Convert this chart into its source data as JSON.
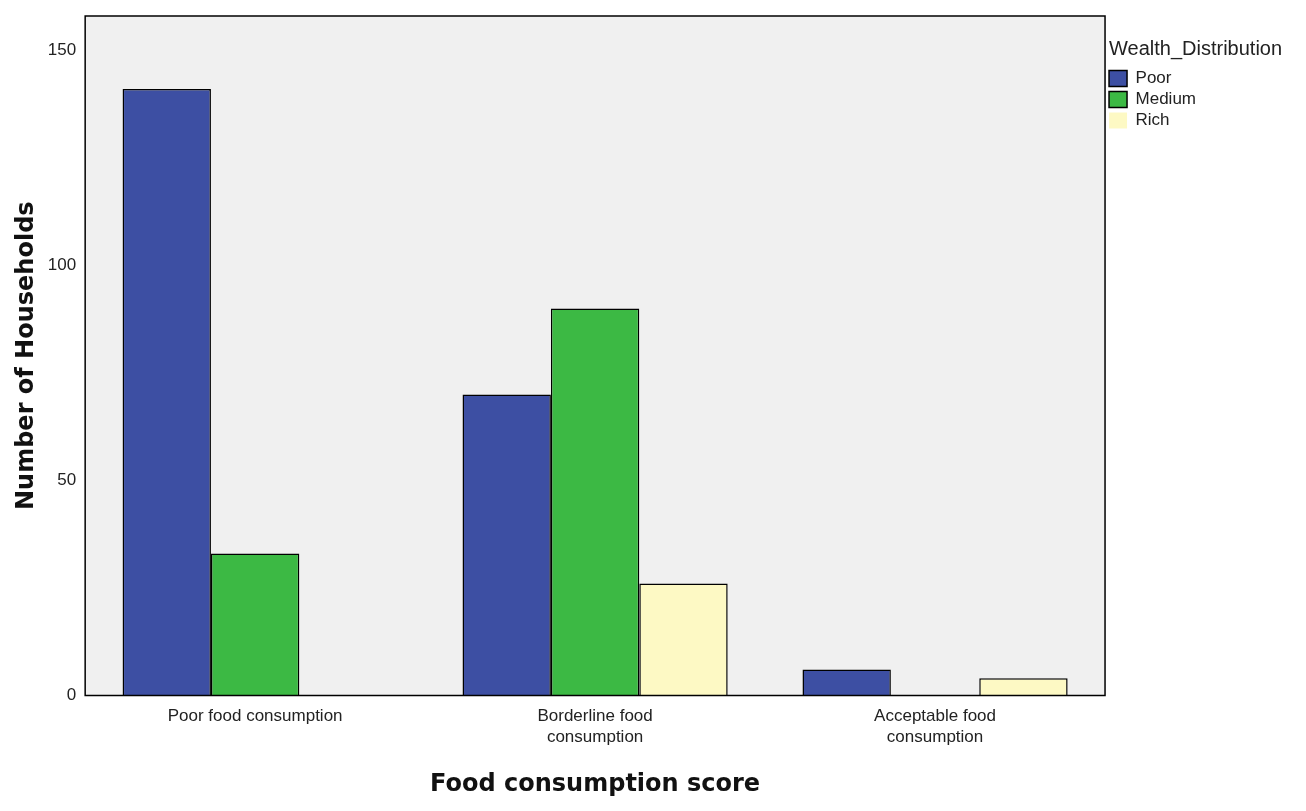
{
  "chart_data": {
    "type": "bar",
    "xlabel": "Food consumption score",
    "ylabel": "Number of Households",
    "legend_title": "Wealth_Distribution",
    "categories": [
      "Poor food consumption",
      "Borderline food consumption",
      "Acceptable food consumption"
    ],
    "series": [
      {
        "name": "Poor",
        "color": "#3d4fa3",
        "values": [
          141,
          70,
          6
        ]
      },
      {
        "name": "Medium",
        "color": "#3cb944",
        "values": [
          33,
          90,
          0
        ]
      },
      {
        "name": "Rich",
        "color": "#fdf9c4",
        "values": [
          0,
          26,
          4
        ]
      }
    ],
    "ylim": [
      0,
      158
    ],
    "yticks": [
      0,
      50,
      100,
      150
    ],
    "grid": false,
    "legend": "top right"
  }
}
